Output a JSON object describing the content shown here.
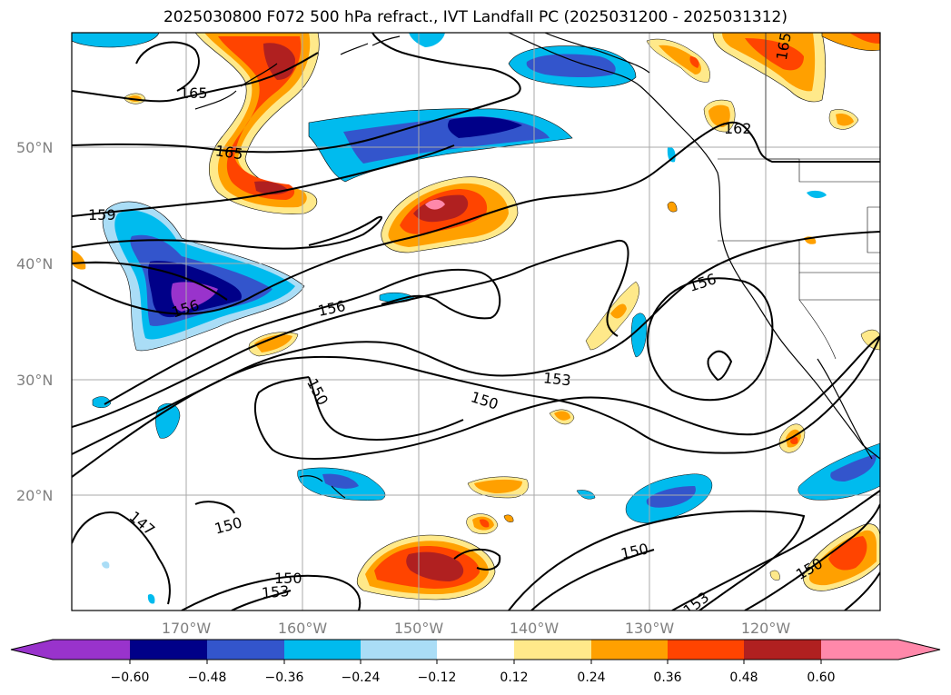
{
  "title": "2025030800 F072 500 hPa refract., IVT Landfall PC (2025031200 - 2025031312)",
  "map": {
    "lat_ticks": [
      "50°N",
      "40°N",
      "30°N",
      "20°N"
    ],
    "lon_ticks": [
      "170°W",
      "160°W",
      "150°W",
      "140°W",
      "130°W",
      "120°W"
    ],
    "gridlines": true,
    "tick_color": "#808080"
  },
  "contours": {
    "color": "#000000",
    "labels": [
      {
        "text": "165"
      },
      {
        "text": "165"
      },
      {
        "text": "165"
      },
      {
        "text": "162"
      },
      {
        "text": "159"
      },
      {
        "text": "156"
      },
      {
        "text": "156"
      },
      {
        "text": "156"
      },
      {
        "text": "153"
      },
      {
        "text": "153"
      },
      {
        "text": "153"
      },
      {
        "text": "150"
      },
      {
        "text": "150"
      },
      {
        "text": "150"
      },
      {
        "text": "150"
      },
      {
        "text": "150"
      },
      {
        "text": "150"
      },
      {
        "text": "147"
      }
    ]
  },
  "colorbar": {
    "tick_labels": [
      "−0.60",
      "−0.48",
      "−0.36",
      "−0.24",
      "−0.12",
      "0.12",
      "0.24",
      "0.36",
      "0.48",
      "0.60"
    ],
    "colors": [
      "#9933cc",
      "#000088",
      "#3355cc",
      "#00bbee",
      "#aaddf6",
      "#ffffff",
      "#ffe98a",
      "#ffa000",
      "#ff4400",
      "#b02020",
      "#ff88aa"
    ],
    "extend": "both"
  }
}
